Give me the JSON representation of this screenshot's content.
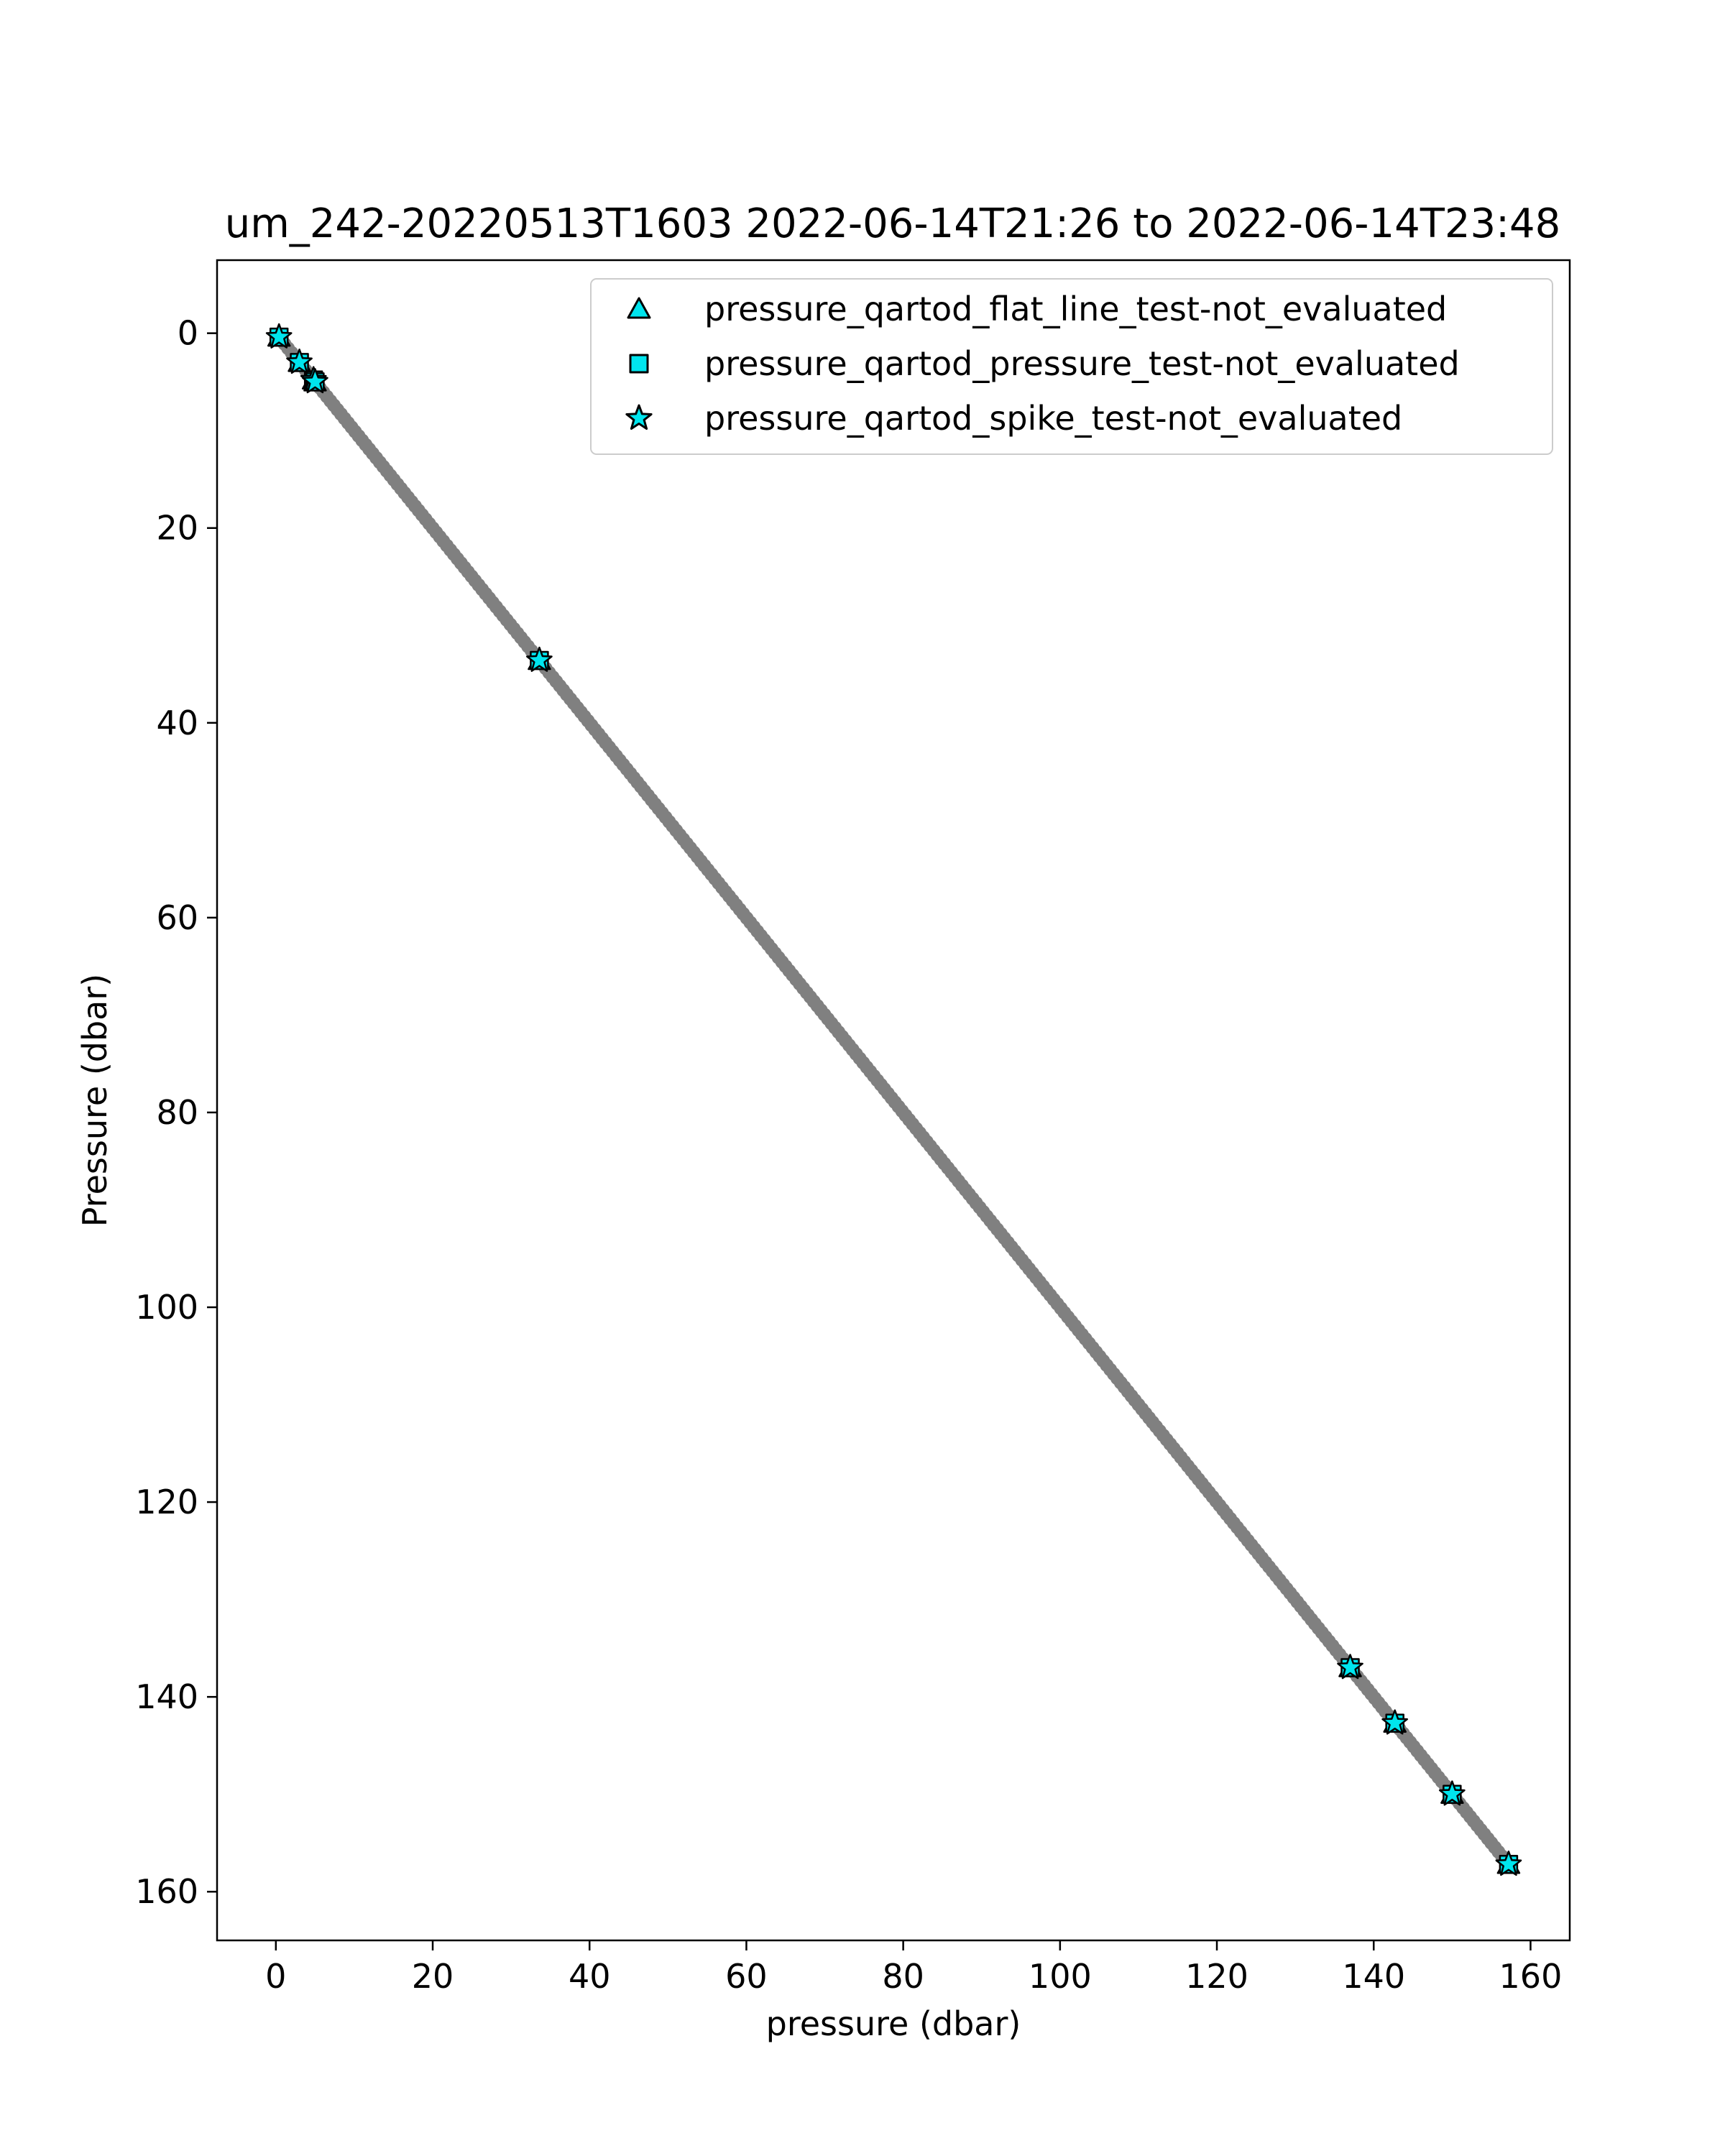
{
  "chart_data": {
    "type": "scatter",
    "title": "um_242-20220513T1603 2022-06-14T21:26 to 2022-06-14T23:48",
    "xlabel": "pressure (dbar)",
    "ylabel": "Pressure (dbar)",
    "xlim": [
      -7.5,
      165
    ],
    "ylim": [
      -7.5,
      165
    ],
    "y_inverted": true,
    "x_ticks": [
      0,
      20,
      40,
      60,
      80,
      100,
      120,
      140,
      160
    ],
    "y_ticks": [
      0,
      20,
      40,
      60,
      80,
      100,
      120,
      140,
      160
    ],
    "x_tick_labels": [
      "0",
      "20",
      "40",
      "60",
      "80",
      "100",
      "120",
      "140",
      "160"
    ],
    "y_tick_labels": [
      "0",
      "20",
      "40",
      "60",
      "80",
      "100",
      "120",
      "140",
      "160"
    ],
    "grid": false,
    "legend_position": "top-right",
    "base_series": {
      "color": "#808080",
      "range": [
        0.2,
        157.2
      ],
      "description_of_points": "y equals x, dense profile"
    },
    "series": [
      {
        "name": "pressure_qartod_flat_line_test-not_evaluated",
        "marker": "triangle",
        "color": "#00E5EE",
        "x": [
          0.4,
          3.0,
          4.8,
          5.0,
          33.6,
          137.0,
          142.7,
          150.0,
          157.2
        ],
        "y": [
          0.4,
          3.0,
          4.8,
          5.0,
          33.6,
          137.0,
          142.7,
          150.0,
          157.2
        ]
      },
      {
        "name": "pressure_qartod_pressure_test-not_evaluated",
        "marker": "square",
        "color": "#00E5EE",
        "x": [
          0.4,
          3.0,
          4.8,
          5.0,
          33.6,
          137.0,
          142.7,
          150.0,
          157.2
        ],
        "y": [
          0.4,
          3.0,
          4.8,
          5.0,
          33.6,
          137.0,
          142.7,
          150.0,
          157.2
        ]
      },
      {
        "name": "pressure_qartod_spike_test-not_evaluated",
        "marker": "star",
        "color": "#00E5EE",
        "x": [
          0.4,
          3.0,
          4.8,
          5.0,
          33.6,
          137.0,
          142.7,
          150.0,
          157.2
        ],
        "y": [
          0.4,
          3.0,
          4.8,
          5.0,
          33.6,
          137.0,
          142.7,
          150.0,
          157.2
        ]
      }
    ]
  }
}
